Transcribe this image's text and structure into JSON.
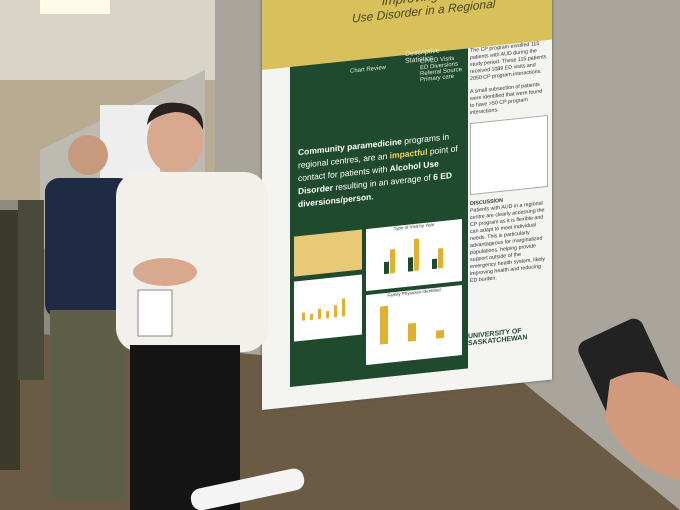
{
  "poster": {
    "title_fragment": "improving care",
    "title_line2": "Use Disorder in a Regional",
    "chart_review": "Chart Review",
    "descriptive_statistics": "Descriptive Statistics",
    "stats_items": [
      "CP/ED Visits",
      "ED Diversions",
      "Referral Source",
      "Primary care"
    ],
    "headline": [
      "Community paramedicine",
      " programs in regional centres, are an ",
      "impactful",
      " point of contact for patients with ",
      "Alcohol Use Disorder",
      " resulting in an average of ",
      "6 ED diversions/person."
    ],
    "results_text": "The CP program enrolled 115 patients with AUD during the study period. These 115 patients received 1089 ED visits and 2050 CP program interactions.",
    "subset_text": "A small subsection of patients were identified that were found to have >50 CP program interactions.",
    "chart_titles": [
      "Type of Visit by Year",
      "Family Physician Identified"
    ],
    "discussion_heading": "DISCUSSION",
    "discussion_text": "Patients with AUD in a regional centre are clearly accessing the CP program as it is flexible and can adapt to meet individual needs. This is particularly advantageous for marginalized populations, helping provide support outside of the emergency health system, likely improving health and reducing ED burden.",
    "university": "UNIVERSITY OF SASKATCHEWAN"
  }
}
